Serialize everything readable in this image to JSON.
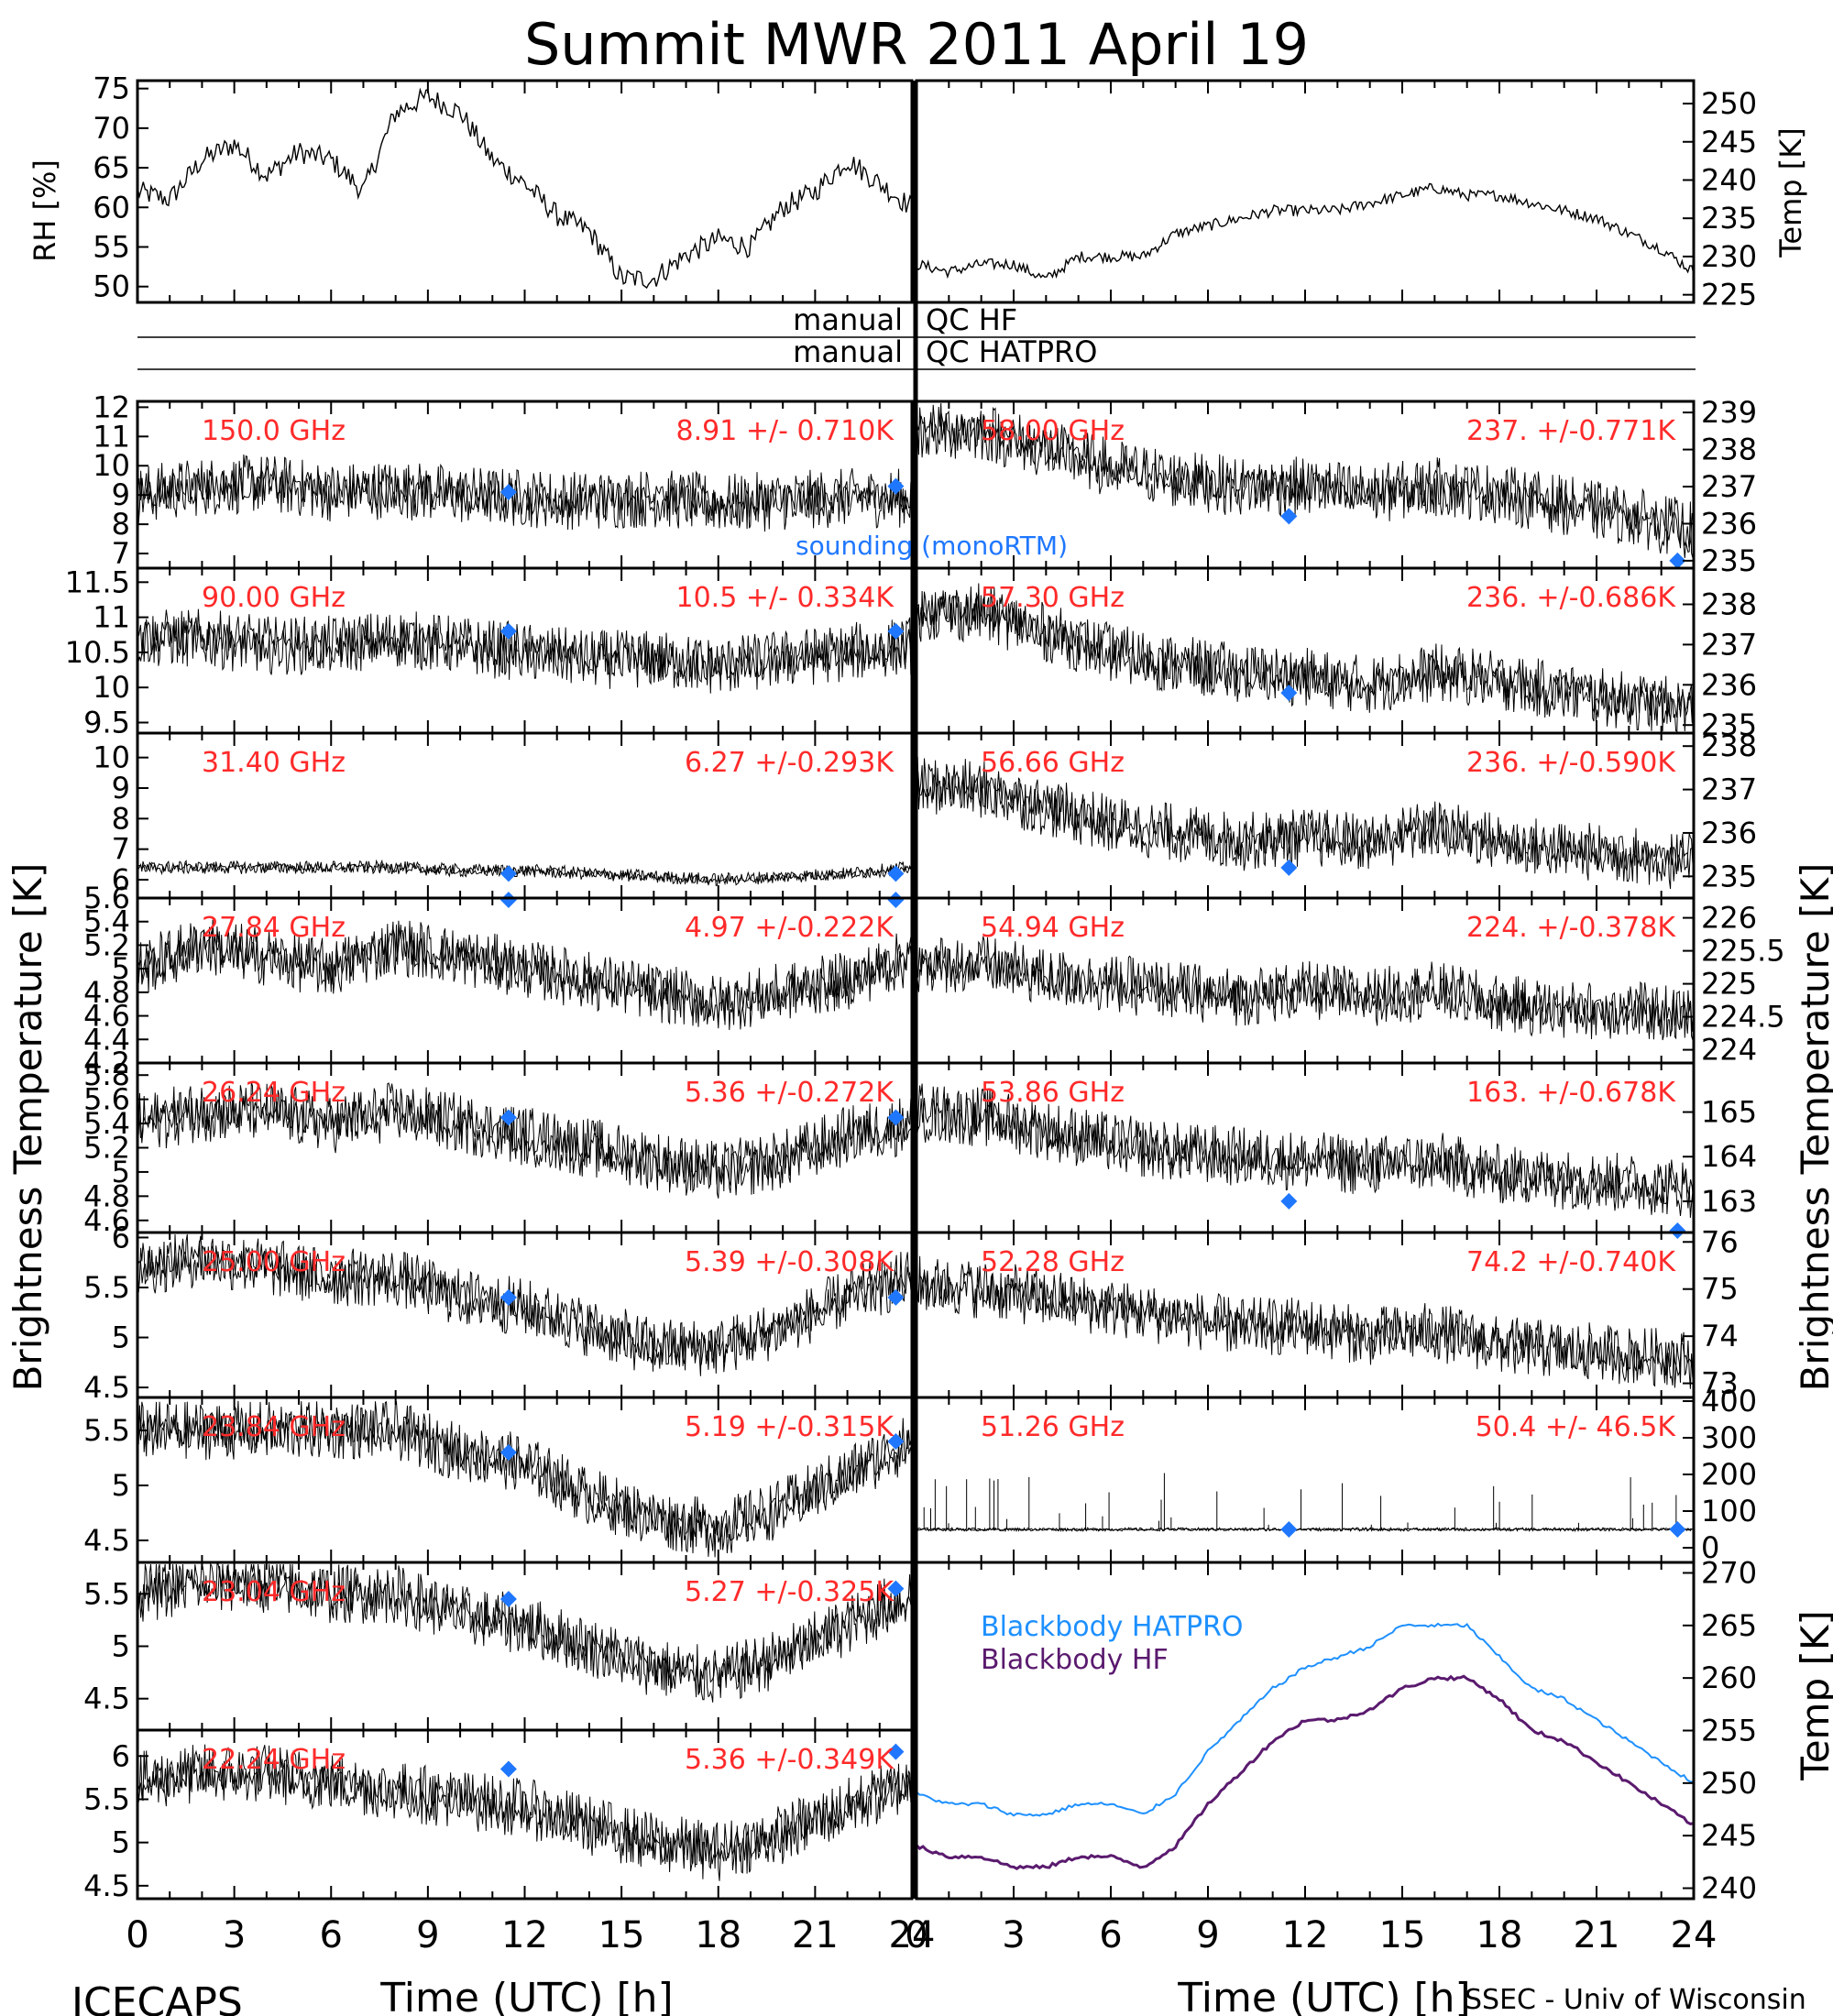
{
  "title": "Summit MWR 2011 April 19",
  "footer": {
    "left": "ICECAPS",
    "right": "SSEC - Univ of Wisconsin"
  },
  "axis_labels": {
    "brightness_left": "Brightness Temperature [K]",
    "brightness_right": "Brightness Temperature [K]",
    "rh": "RH [%]",
    "temp_top": "Temp [K]",
    "temp_bottom": "Temp [K]",
    "x_left": "Time (UTC) [h]",
    "x_right": "Time (UTC) [h]"
  },
  "qc_rows": [
    {
      "left": "manual",
      "right": "QC HF"
    },
    {
      "left": "manual",
      "right": "QC HATPRO"
    }
  ],
  "colors": {
    "label_red": "#ff2a2a",
    "sounding_blue": "#1f77ff",
    "hatpro_blue": "#1e90ff",
    "hf_purple": "#5a1a6e",
    "trace": "#000000"
  },
  "chart_data": [
    {
      "id": "rh",
      "type": "line",
      "ylabel": "RH [%]",
      "ylim": [
        48,
        76
      ],
      "yticks": [
        50,
        55,
        60,
        65,
        70,
        75
      ],
      "x": [
        0,
        1,
        2,
        3,
        4,
        5,
        6,
        7,
        8,
        9,
        10,
        11,
        12,
        13,
        14,
        15,
        16,
        17,
        18,
        19,
        20,
        21,
        22,
        23,
        24
      ],
      "values": [
        62,
        61,
        66,
        68,
        64,
        67,
        66,
        62,
        72,
        74,
        72,
        66,
        63,
        59,
        57,
        51,
        51,
        54,
        56,
        55,
        60,
        62,
        66,
        63,
        60
      ]
    },
    {
      "id": "temp",
      "type": "line",
      "ylabel": "Temp [K]",
      "ylim": [
        224,
        253
      ],
      "yticks": [
        225,
        230,
        235,
        240,
        245,
        250
      ],
      "x": [
        0,
        1,
        2,
        3,
        4,
        5,
        6,
        7,
        8,
        9,
        10,
        11,
        12,
        13,
        14,
        15,
        16,
        17,
        18,
        19,
        20,
        21,
        22,
        23,
        24
      ],
      "values": [
        229,
        228,
        229,
        229,
        227,
        230,
        230,
        230,
        233,
        234,
        235,
        236,
        236,
        236,
        237,
        238,
        239,
        238,
        238,
        237,
        236,
        235,
        233,
        231,
        228
      ]
    },
    {
      "id": "ch-150.0",
      "type": "line",
      "column": "left",
      "freq_label": "150.0 GHz",
      "stat_label": "8.91 +/- 0.710K",
      "note": "sounding (monoRTM)",
      "ylim": [
        6.5,
        12.2
      ],
      "yticks": [
        7,
        8,
        9,
        10,
        11,
        12
      ],
      "x": [
        0,
        2,
        4,
        6,
        8,
        10,
        12,
        14,
        16,
        18,
        20,
        22,
        24
      ],
      "values": [
        9.0,
        9.3,
        9.4,
        9.1,
        9.2,
        9.0,
        8.9,
        8.8,
        8.9,
        8.7,
        8.8,
        8.9,
        8.9
      ],
      "sounding": [
        {
          "x": 11.5,
          "y": 9.1
        },
        {
          "x": 23.5,
          "y": 9.3
        }
      ]
    },
    {
      "id": "ch-90.00",
      "type": "line",
      "column": "left",
      "freq_label": "90.00 GHz",
      "stat_label": "10.5 +/- 0.334K",
      "ylim": [
        9.35,
        11.7
      ],
      "yticks": [
        9.5,
        10.0,
        10.5,
        11.0,
        11.5
      ],
      "x": [
        0,
        2,
        4,
        6,
        8,
        10,
        12,
        14,
        16,
        18,
        20,
        22,
        24
      ],
      "values": [
        10.7,
        10.7,
        10.6,
        10.6,
        10.7,
        10.6,
        10.5,
        10.4,
        10.4,
        10.3,
        10.4,
        10.5,
        10.6
      ],
      "sounding": [
        {
          "x": 11.5,
          "y": 10.8
        },
        {
          "x": 23.5,
          "y": 10.8
        }
      ]
    },
    {
      "id": "ch-31.40",
      "type": "line",
      "column": "left",
      "freq_label": "31.40 GHz",
      "stat_label": "6.27 +/-0.293K",
      "ylim": [
        5.4,
        10.8
      ],
      "yticks": [
        6,
        7,
        8,
        9,
        10
      ],
      "x": [
        0,
        2,
        4,
        6,
        8,
        10,
        12,
        14,
        16,
        18,
        20,
        22,
        24
      ],
      "values": [
        6.4,
        6.4,
        6.4,
        6.4,
        6.4,
        6.3,
        6.3,
        6.2,
        6.1,
        6.0,
        6.1,
        6.2,
        6.4
      ],
      "sounding": [
        {
          "x": 11.5,
          "y": 6.2
        },
        {
          "x": 23.5,
          "y": 6.2
        }
      ]
    },
    {
      "id": "ch-27.84",
      "type": "line",
      "column": "left",
      "freq_label": "27.84 GHz",
      "stat_label": "4.97 +/-0.222K",
      "ylim": [
        4.2,
        5.6
      ],
      "yticks": [
        4.2,
        4.4,
        4.6,
        4.8,
        5.0,
        5.2,
        5.4,
        5.6
      ],
      "x": [
        0,
        2,
        4,
        6,
        8,
        10,
        12,
        14,
        16,
        18,
        20,
        22,
        24
      ],
      "values": [
        5.0,
        5.2,
        5.1,
        5.0,
        5.2,
        5.1,
        5.0,
        4.9,
        4.8,
        4.7,
        4.8,
        4.9,
        5.1
      ],
      "sounding": [
        {
          "x": 11.5,
          "y": 5.6
        },
        {
          "x": 23.5,
          "y": 5.6
        }
      ]
    },
    {
      "id": "ch-26.24",
      "type": "line",
      "column": "left",
      "freq_label": "26.24 GHz",
      "stat_label": "5.36 +/-0.272K",
      "ylim": [
        4.5,
        5.9
      ],
      "yticks": [
        4.6,
        4.8,
        5.0,
        5.2,
        5.4,
        5.6,
        5.8
      ],
      "x": [
        0,
        2,
        4,
        6,
        8,
        10,
        12,
        14,
        16,
        18,
        20,
        22,
        24
      ],
      "values": [
        5.4,
        5.5,
        5.5,
        5.4,
        5.5,
        5.4,
        5.3,
        5.2,
        5.1,
        5.0,
        5.1,
        5.3,
        5.4
      ],
      "sounding": [
        {
          "x": 11.5,
          "y": 5.45
        },
        {
          "x": 23.5,
          "y": 5.45
        }
      ]
    },
    {
      "id": "ch-25.00",
      "type": "line",
      "column": "left",
      "freq_label": "25.00 GHz",
      "stat_label": "5.39 +/-0.308K",
      "ylim": [
        4.4,
        6.05
      ],
      "yticks": [
        4.5,
        5.0,
        5.5,
        6.0
      ],
      "x": [
        0,
        2,
        4,
        6,
        8,
        10,
        12,
        14,
        16,
        18,
        20,
        22,
        24
      ],
      "values": [
        5.7,
        5.8,
        5.7,
        5.6,
        5.6,
        5.4,
        5.3,
        5.1,
        4.9,
        4.9,
        5.1,
        5.4,
        5.6
      ],
      "sounding": [
        {
          "x": 11.5,
          "y": 5.4
        },
        {
          "x": 23.5,
          "y": 5.4
        }
      ]
    },
    {
      "id": "ch-23.84",
      "type": "line",
      "column": "left",
      "freq_label": "23.84 GHz",
      "stat_label": "5.19 +/-0.315K",
      "ylim": [
        4.3,
        5.8
      ],
      "yticks": [
        4.5,
        5.0,
        5.5
      ],
      "x": [
        0,
        2,
        4,
        6,
        8,
        10,
        12,
        14,
        16,
        18,
        20,
        22,
        24
      ],
      "values": [
        5.5,
        5.5,
        5.5,
        5.5,
        5.5,
        5.3,
        5.2,
        4.9,
        4.7,
        4.6,
        4.8,
        5.1,
        5.4
      ],
      "sounding": [
        {
          "x": 11.5,
          "y": 5.3
        },
        {
          "x": 23.5,
          "y": 5.4
        }
      ]
    },
    {
      "id": "ch-23.04",
      "type": "line",
      "column": "left",
      "freq_label": "23.04 GHz",
      "stat_label": "5.27 +/-0.325K",
      "ylim": [
        4.2,
        5.8
      ],
      "yticks": [
        4.5,
        5.0,
        5.5
      ],
      "x": [
        0,
        2,
        4,
        6,
        8,
        10,
        12,
        14,
        16,
        18,
        20,
        22,
        24
      ],
      "values": [
        5.5,
        5.6,
        5.6,
        5.5,
        5.5,
        5.3,
        5.2,
        5.0,
        4.8,
        4.7,
        4.9,
        5.2,
        5.5
      ],
      "sounding": [
        {
          "x": 11.5,
          "y": 5.45
        },
        {
          "x": 23.5,
          "y": 5.55
        }
      ]
    },
    {
      "id": "ch-22.24",
      "type": "line",
      "column": "left",
      "freq_label": "22.24 GHz",
      "stat_label": "5.36 +/-0.349K",
      "ylim": [
        4.35,
        6.3
      ],
      "yticks": [
        4.5,
        5.0,
        5.5,
        6.0
      ],
      "x": [
        0,
        2,
        4,
        6,
        8,
        10,
        12,
        14,
        16,
        18,
        20,
        22,
        24
      ],
      "values": [
        5.7,
        5.8,
        5.8,
        5.7,
        5.6,
        5.5,
        5.4,
        5.2,
        5.0,
        4.9,
        5.1,
        5.4,
        5.7
      ],
      "sounding": [
        {
          "x": 11.5,
          "y": 5.85
        },
        {
          "x": 23.5,
          "y": 6.05
        }
      ]
    },
    {
      "id": "ch-58.00",
      "type": "line",
      "column": "right",
      "freq_label": "58.00 GHz",
      "stat_label": "237. +/-0.771K",
      "ylim": [
        234.8,
        239.3
      ],
      "yticks": [
        235,
        236,
        237,
        238,
        239
      ],
      "x": [
        0,
        2,
        4,
        6,
        8,
        10,
        12,
        14,
        16,
        18,
        20,
        22,
        24
      ],
      "values": [
        238.5,
        238.5,
        238.0,
        237.5,
        237.2,
        237.0,
        237.0,
        236.8,
        237.0,
        236.8,
        236.5,
        236.2,
        235.8
      ],
      "sounding": [
        {
          "x": 11.5,
          "y": 236.2
        },
        {
          "x": 23.5,
          "y": 235.0
        }
      ]
    },
    {
      "id": "ch-57.30",
      "type": "line",
      "column": "right",
      "freq_label": "57.30 GHz",
      "stat_label": "236. +/-0.686K",
      "ylim": [
        234.8,
        238.9
      ],
      "yticks": [
        235,
        236,
        237,
        238
      ],
      "x": [
        0,
        2,
        4,
        6,
        8,
        10,
        12,
        14,
        16,
        18,
        20,
        22,
        24
      ],
      "values": [
        237.8,
        237.8,
        237.3,
        236.8,
        236.5,
        236.3,
        236.2,
        236.0,
        236.3,
        236.1,
        235.8,
        235.6,
        235.4
      ],
      "sounding": [
        {
          "x": 11.5,
          "y": 235.8
        }
      ]
    },
    {
      "id": "ch-56.66",
      "type": "line",
      "column": "right",
      "freq_label": "56.66 GHz",
      "stat_label": "236. +/-0.590K",
      "ylim": [
        234.5,
        238.3
      ],
      "yticks": [
        235,
        236,
        237,
        238
      ],
      "x": [
        0,
        2,
        4,
        6,
        8,
        10,
        12,
        14,
        16,
        18,
        20,
        22,
        24
      ],
      "values": [
        237.1,
        237.0,
        236.6,
        236.2,
        236.0,
        235.8,
        235.9,
        235.8,
        236.1,
        235.8,
        235.6,
        235.5,
        235.3
      ],
      "sounding": [
        {
          "x": 11.5,
          "y": 235.2
        }
      ]
    },
    {
      "id": "ch-54.94",
      "type": "line",
      "column": "right",
      "freq_label": "54.94 GHz",
      "stat_label": "224. +/-0.378K",
      "ylim": [
        223.8,
        226.3
      ],
      "yticks": [
        224.0,
        224.5,
        225.0,
        225.5,
        226.0
      ],
      "x": [
        0,
        2,
        4,
        6,
        8,
        10,
        12,
        14,
        16,
        18,
        20,
        22,
        24
      ],
      "values": [
        225.3,
        225.3,
        225.1,
        225.0,
        224.9,
        224.8,
        224.9,
        224.8,
        224.9,
        224.7,
        224.6,
        224.6,
        224.5
      ],
      "sounding": []
    },
    {
      "id": "ch-53.86",
      "type": "line",
      "column": "right",
      "freq_label": "53.86 GHz",
      "stat_label": "163. +/-0.678K",
      "ylim": [
        162.3,
        166.1
      ],
      "yticks": [
        163,
        164,
        165
      ],
      "x": [
        0,
        2,
        4,
        6,
        8,
        10,
        12,
        14,
        16,
        18,
        20,
        22,
        24
      ],
      "values": [
        165.0,
        164.9,
        164.6,
        164.3,
        164.1,
        164.0,
        163.9,
        163.8,
        163.9,
        163.6,
        163.5,
        163.4,
        163.3
      ],
      "sounding": [
        {
          "x": 11.5,
          "y": 163.0
        },
        {
          "x": 23.5,
          "y": 162.1
        }
      ]
    },
    {
      "id": "ch-52.28",
      "type": "line",
      "column": "right",
      "freq_label": "52.28 GHz",
      "stat_label": "74.2 +/-0.740K",
      "ylim": [
        72.7,
        76.2
      ],
      "yticks": [
        73,
        74,
        75,
        76
      ],
      "x": [
        0,
        2,
        4,
        6,
        8,
        10,
        12,
        14,
        16,
        18,
        20,
        22,
        24
      ],
      "values": [
        75.1,
        75.0,
        74.8,
        74.6,
        74.4,
        74.2,
        74.2,
        74.0,
        74.1,
        73.8,
        73.7,
        73.6,
        73.5
      ],
      "sounding": []
    },
    {
      "id": "ch-51.26",
      "type": "line",
      "column": "right",
      "freq_label": "51.26 GHz",
      "stat_label": "50.4 +/- 46.5K",
      "ylim": [
        -40,
        410
      ],
      "yticks": [
        0,
        100,
        200,
        300,
        400
      ],
      "x": [
        0,
        2,
        4,
        6,
        8,
        10,
        12,
        14,
        16,
        18,
        20,
        22,
        24
      ],
      "values": [
        50,
        50,
        50,
        50,
        50,
        50,
        50,
        50,
        50,
        50,
        50,
        50,
        50
      ],
      "sounding": [
        {
          "x": 11.5,
          "y": 50
        },
        {
          "x": 23.5,
          "y": 50
        }
      ]
    },
    {
      "id": "blackbody",
      "type": "line",
      "ylabel": "Temp [K]",
      "ylim": [
        239,
        271
      ],
      "yticks": [
        240,
        245,
        250,
        255,
        260,
        265,
        270
      ],
      "x": [
        0,
        1,
        2,
        3,
        4,
        5,
        6,
        7,
        8,
        9,
        10,
        11,
        12,
        13,
        14,
        15,
        16,
        17,
        18,
        19,
        20,
        21,
        22,
        23,
        24
      ],
      "series": [
        {
          "name": "Blackbody HATPRO",
          "values": [
            249,
            248,
            248,
            247,
            247,
            248,
            248,
            247,
            249,
            253,
            256,
            259,
            261,
            262,
            263,
            265,
            265,
            265,
            262,
            259,
            258,
            256,
            254,
            252,
            250
          ]
        },
        {
          "name": "Blackbody HF",
          "values": [
            244,
            243,
            243,
            242,
            242,
            243,
            243,
            242,
            244,
            248,
            251,
            254,
            256,
            256,
            257,
            259,
            260,
            260,
            258,
            255,
            254,
            252,
            250,
            248,
            246
          ]
        }
      ]
    }
  ],
  "x_axis": {
    "ticks": [
      "0",
      "3",
      "6",
      "9",
      "12",
      "15",
      "18",
      "21",
      "24"
    ],
    "right_ticks": [
      "0",
      "3",
      "6",
      "9",
      "12",
      "15",
      "18",
      "21",
      "24"
    ]
  }
}
